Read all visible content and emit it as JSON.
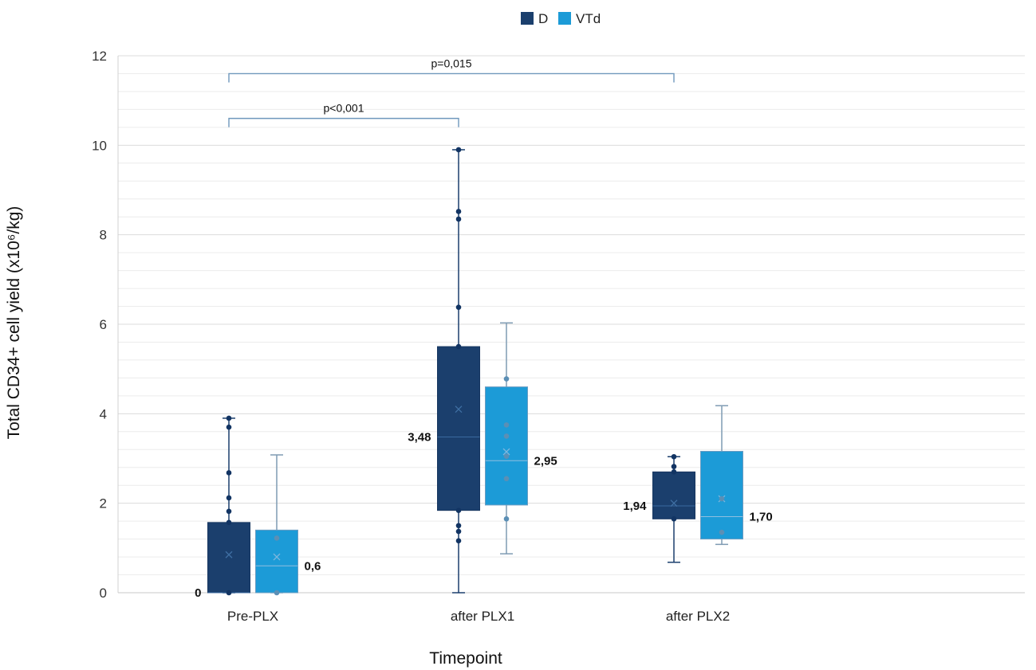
{
  "chart_data": {
    "type": "box",
    "title": "",
    "xlabel": "Timepoint",
    "ylabel": "Total CD34+ cell yield (x10⁶/kg)",
    "ylim": [
      0,
      12
    ],
    "yticks": [
      0,
      2,
      4,
      6,
      8,
      10,
      12
    ],
    "grid": true,
    "legend_position": "top-center",
    "categories": [
      "Pre-PLX",
      "after PLX1",
      "after PLX2"
    ],
    "series": [
      {
        "name": "D",
        "color": "#1b3f6d",
        "boxes": [
          {
            "category": "Pre-PLX",
            "min": 0,
            "q1": 0,
            "median": 0,
            "q3": 1.57,
            "max": 3.9,
            "mean": 0.85,
            "median_label": "0",
            "points": [
              0,
              1.57,
              1.82,
              2.12,
              2.68,
              3.7,
              3.9
            ]
          },
          {
            "category": "after PLX1",
            "min": 0,
            "q1": 1.84,
            "median": 3.48,
            "q3": 5.5,
            "max": 9.9,
            "mean": 4.1,
            "median_label": "3,48",
            "points": [
              1.16,
              1.37,
              1.5,
              1.84,
              5.5,
              6.38,
              8.35,
              8.52,
              9.9
            ]
          },
          {
            "category": "after PLX2",
            "min": 0.68,
            "q1": 1.65,
            "median": 1.94,
            "q3": 2.7,
            "max": 3.04,
            "mean": 2.0,
            "median_label": "1,94",
            "points": [
              1.65,
              2.7,
              2.82,
              3.04
            ]
          }
        ]
      },
      {
        "name": "VTd",
        "color": "#1c9bd7",
        "boxes": [
          {
            "category": "Pre-PLX",
            "min": 0,
            "q1": 0,
            "median": 0.6,
            "q3": 1.4,
            "max": 3.08,
            "mean": 0.8,
            "median_label": "0,6",
            "points": [
              0,
              1.22
            ]
          },
          {
            "category": "after PLX1",
            "min": 0.87,
            "q1": 1.96,
            "median": 2.95,
            "q3": 4.6,
            "max": 6.03,
            "mean": 3.15,
            "median_label": "2,95",
            "points": [
              1.65,
              2.55,
              3.05,
              3.5,
              3.75,
              4.78
            ]
          },
          {
            "category": "after PLX2",
            "min": 1.08,
            "q1": 1.2,
            "median": 1.7,
            "q3": 3.16,
            "max": 4.18,
            "mean": 2.1,
            "median_label": "1,70",
            "points": [
              1.35,
              2.1
            ]
          }
        ]
      }
    ],
    "annotations": [
      {
        "text": "p<0,001",
        "from": "Pre-PLX",
        "to": "after PLX1",
        "y": 10.6
      },
      {
        "text": "p=0,015",
        "from": "Pre-PLX",
        "to": "after PLX2",
        "y": 11.6
      }
    ]
  }
}
